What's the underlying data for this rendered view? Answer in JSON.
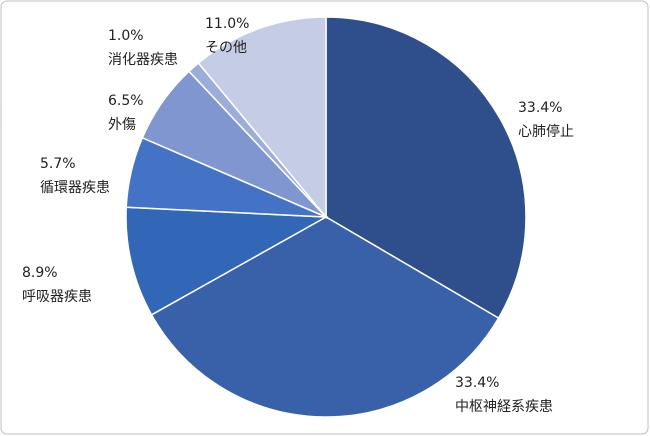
{
  "chart_data": {
    "type": "pie",
    "categories": [
      "心肺停止",
      "中枢神経系疾患",
      "呼吸器疾患",
      "循環器疾患",
      "外傷",
      "消化器疾患",
      "その他"
    ],
    "values": [
      33.4,
      33.4,
      8.9,
      5.7,
      6.5,
      1.0,
      11.0
    ],
    "value_labels": [
      "33.4%",
      "33.4%",
      "8.9%",
      "5.7%",
      "6.5%",
      "1.0%",
      "11.0%"
    ],
    "colors": [
      "#2f4f8c",
      "#3961a9",
      "#3267b8",
      "#4472c4",
      "#8096d0",
      "#9cadda",
      "#c4cce6"
    ]
  }
}
